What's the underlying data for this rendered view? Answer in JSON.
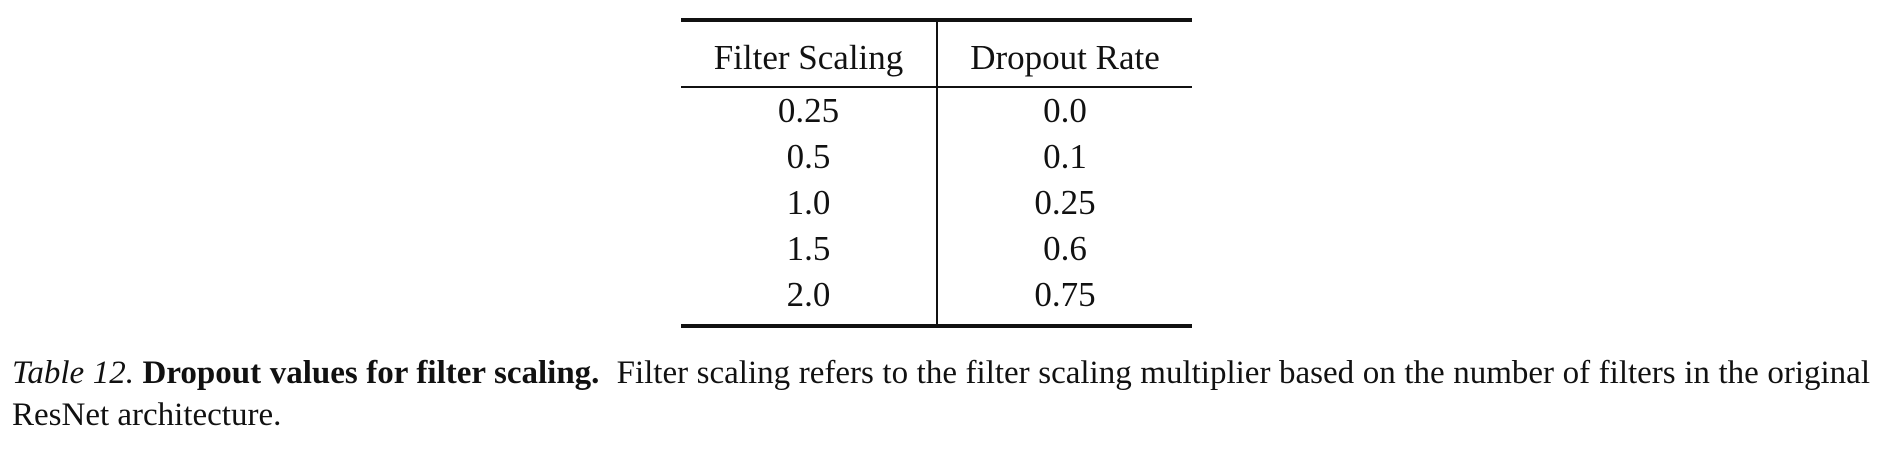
{
  "table": {
    "headers": [
      "Filter Scaling",
      "Dropout Rate"
    ],
    "rows": [
      [
        "0.25",
        "0.0"
      ],
      [
        "0.5",
        "0.1"
      ],
      [
        "1.0",
        "0.25"
      ],
      [
        "1.5",
        "0.6"
      ],
      [
        "2.0",
        "0.75"
      ]
    ]
  },
  "caption": {
    "label": "Table 12.",
    "title": "Dropout values for filter scaling.",
    "text": "Filter scaling refers to the filter scaling multiplier based on the number of filters in the original ResNet architecture."
  }
}
